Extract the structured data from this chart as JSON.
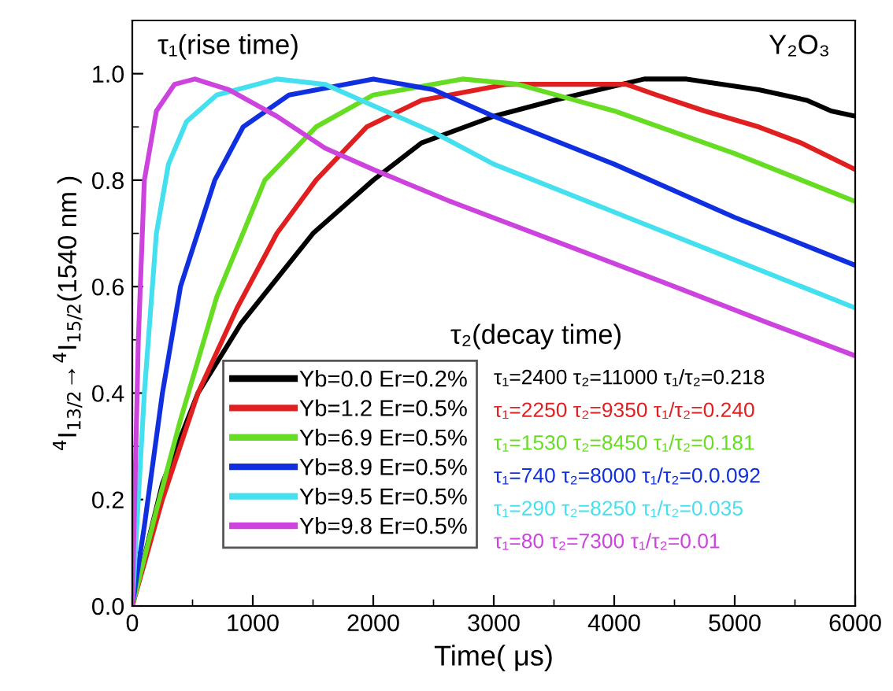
{
  "chart_data": {
    "type": "line",
    "xlabel": "Time( μs)",
    "ylabel": "$^{4}$I$_{13/2}$→$^{4}$I$_{15/2}$(1540 nm )",
    "xlim": [
      0,
      6000
    ],
    "ylim": [
      0,
      1.1
    ],
    "xticks": [
      0,
      1000,
      2000,
      3000,
      4000,
      5000,
      6000
    ],
    "yticks": [
      {
        "value": 0,
        "label": "0.0"
      },
      0.2,
      0.4,
      0.6,
      0.8,
      {
        "value": 1,
        "label": "1.0"
      }
    ],
    "grid": false,
    "legend": "bottom left",
    "marker": "none",
    "line_style": "solid",
    "annotations": [
      "τ₁(rise time)",
      "Y₂O₃",
      "τ₂(decay time)",
      "τ₁=2400 τ₂=11000 τ₁/τ₂=0.218",
      "τ₁=2250 τ₂=9350 τ₁/τ₂=0.240",
      "τ₁=1530 τ₂=8450 τ₁/τ₂=0.181",
      "τ₁=740 τ₂=8000 τ₁/τ₂=0.0.092",
      "τ₁=290 τ₂=8250 τ₁/τ₂=0.035",
      "τ₁=80 τ₂=7300 τ₁/τ₂=0.01"
    ],
    "series": [
      {
        "name": "Yb=0.0 Er=0.2%",
        "color": "#000000",
        "x": [
          0,
          250,
          545,
          900,
          1500,
          2000,
          2400,
          3000,
          3500,
          4250,
          4600,
          5200,
          5600,
          5800,
          6000
        ],
        "values": [
          0,
          0.23,
          0.4,
          0.53,
          0.7,
          0.8,
          0.87,
          0.92,
          0.95,
          0.99,
          0.99,
          0.97,
          0.95,
          0.93,
          0.92
        ]
      },
      {
        "name": "Yb=1.2 Er=0.5%",
        "color": "#e02020",
        "x": [
          0,
          250,
          545,
          870,
          1200,
          1525,
          1945,
          2400,
          3100,
          4100,
          4350,
          4750,
          5200,
          5550,
          6000
        ],
        "values": [
          0,
          0.2,
          0.4,
          0.56,
          0.7,
          0.8,
          0.9,
          0.95,
          0.98,
          0.98,
          0.96,
          0.93,
          0.9,
          0.87,
          0.82
        ]
      },
      {
        "name": "Yb=6.9 Er=0.5%",
        "color": "#66dd22",
        "x": [
          0,
          200,
          400,
          700,
          1100,
          1525,
          2000,
          2740,
          3200,
          4000,
          5000,
          6000
        ],
        "values": [
          0,
          0.18,
          0.35,
          0.58,
          0.8,
          0.9,
          0.96,
          0.99,
          0.98,
          0.93,
          0.85,
          0.76
        ]
      },
      {
        "name": "Yb=8.9 Er=0.5%",
        "color": "#1030e0",
        "x": [
          0,
          100,
          250,
          400,
          685,
          920,
          1300,
          2000,
          2500,
          3000,
          4000,
          5000,
          6000
        ],
        "values": [
          0,
          0.15,
          0.4,
          0.6,
          0.8,
          0.9,
          0.96,
          0.99,
          0.97,
          0.92,
          0.83,
          0.73,
          0.64
        ]
      },
      {
        "name": "Yb=9.5 Er=0.5%",
        "color": "#44e0f0",
        "x": [
          0,
          100,
          200,
          300,
          450,
          700,
          1200,
          1600,
          2000,
          2500,
          3000,
          4000,
          5000,
          6000
        ],
        "values": [
          0,
          0.4,
          0.7,
          0.83,
          0.91,
          0.96,
          0.99,
          0.98,
          0.94,
          0.89,
          0.83,
          0.74,
          0.65,
          0.56
        ]
      },
      {
        "name": "Yb=9.8 Er=0.5%",
        "color": "#cc44dd",
        "x": [
          0,
          50,
          100,
          200,
          350,
          520,
          800,
          1200,
          1600,
          2000,
          2640,
          3575,
          4500,
          5300,
          6000
        ],
        "values": [
          0,
          0.5,
          0.8,
          0.93,
          0.98,
          0.99,
          0.97,
          0.92,
          0.86,
          0.82,
          0.76,
          0.68,
          0.6,
          0.53,
          0.47
        ]
      }
    ]
  }
}
